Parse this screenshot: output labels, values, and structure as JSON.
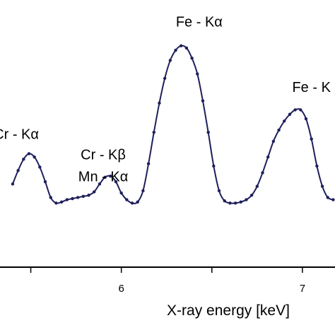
{
  "chart_data": {
    "type": "line",
    "title": "",
    "xlabel": "X-ray energy [keV]",
    "ylabel": "",
    "xlim": [
      5.33,
      7.18
    ],
    "ylim": [
      0,
      1
    ],
    "xticks": [
      5.5,
      6,
      6.5,
      7
    ],
    "xtick_labels": [
      "",
      "6",
      "",
      "7"
    ],
    "grid": false,
    "legend": "none",
    "series_color": "#1f1f5c",
    "x": [
      5.4,
      5.43,
      5.46,
      5.49,
      5.52,
      5.55,
      5.58,
      5.61,
      5.64,
      5.67,
      5.7,
      5.73,
      5.76,
      5.79,
      5.82,
      5.85,
      5.88,
      5.91,
      5.94,
      5.97,
      6.0,
      6.03,
      6.06,
      6.09,
      6.12,
      6.15,
      6.18,
      6.21,
      6.24,
      6.27,
      6.3,
      6.33,
      6.36,
      6.39,
      6.42,
      6.45,
      6.48,
      6.51,
      6.54,
      6.57,
      6.6,
      6.63,
      6.66,
      6.69,
      6.72,
      6.75,
      6.78,
      6.81,
      6.84,
      6.87,
      6.9,
      6.93,
      6.96,
      6.99,
      7.02,
      7.05,
      7.08,
      7.11,
      7.14,
      7.17
    ],
    "y": [
      0.37,
      0.43,
      0.48,
      0.505,
      0.49,
      0.445,
      0.38,
      0.31,
      0.285,
      0.29,
      0.3,
      0.305,
      0.31,
      0.315,
      0.32,
      0.335,
      0.37,
      0.4,
      0.405,
      0.38,
      0.33,
      0.3,
      0.285,
      0.29,
      0.34,
      0.46,
      0.6,
      0.73,
      0.84,
      0.92,
      0.965,
      0.985,
      0.975,
      0.93,
      0.86,
      0.74,
      0.6,
      0.45,
      0.34,
      0.295,
      0.285,
      0.285,
      0.29,
      0.3,
      0.32,
      0.36,
      0.42,
      0.49,
      0.56,
      0.61,
      0.65,
      0.68,
      0.7,
      0.7,
      0.66,
      0.57,
      0.45,
      0.36,
      0.31,
      0.3
    ],
    "annotations": [
      {
        "lines": [
          "Cr - Kα"
        ],
        "x": 5.42,
        "y": 0.57
      },
      {
        "lines": [
          "Cr - Kβ",
          "Mn - Kα"
        ],
        "x": 5.9,
        "y": 0.48
      },
      {
        "lines": [
          "Fe - Kα"
        ],
        "x": 6.43,
        "y": 1.07
      },
      {
        "lines": [
          "Fe - K"
        ],
        "x": 7.05,
        "y": 0.78
      }
    ]
  }
}
